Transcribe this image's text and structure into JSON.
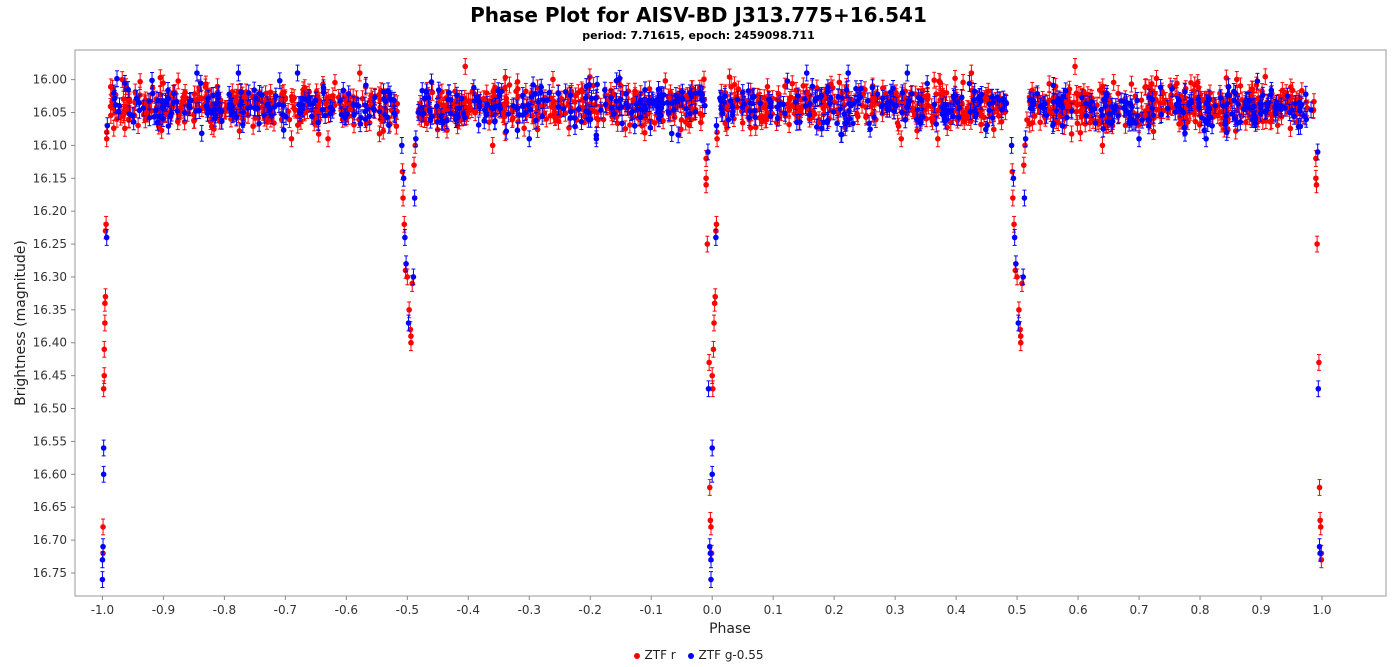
{
  "chart_data": {
    "type": "scatter",
    "title": "Phase Plot for AISV-BD J313.775+16.541",
    "subtitle": "period: 7.71615, epoch: 2459098.711",
    "xlabel": "Phase",
    "ylabel": "Brightness (magnitude)",
    "xlim": [
      -1.045,
      1.105
    ],
    "ylim": [
      16.785,
      15.955
    ],
    "y_inverted": true,
    "x_ticks": [
      "-1.0",
      "-0.9",
      "-0.8",
      "-0.7",
      "-0.6",
      "-0.5",
      "-0.4",
      "-0.3",
      "-0.2",
      "-0.1",
      "0.0",
      "0.1",
      "0.2",
      "0.3",
      "0.4",
      "0.5",
      "0.6",
      "0.7",
      "0.8",
      "0.9",
      "1.0"
    ],
    "y_ticks": [
      "16.00",
      "16.05",
      "16.10",
      "16.15",
      "16.20",
      "16.25",
      "16.30",
      "16.35",
      "16.40",
      "16.45",
      "16.50",
      "16.55",
      "16.60",
      "16.65",
      "16.70",
      "16.75"
    ],
    "grid": false,
    "legend_position": "bottom-center",
    "baseline_magnitude": 16.04,
    "error_bar_magnitude": 0.012,
    "primary_eclipse_phases": [
      -1.0,
      0.0,
      1.0
    ],
    "secondary_eclipse_phases": [
      -0.5,
      0.5
    ],
    "series": [
      {
        "name": "ZTF r",
        "color": "#ff0000",
        "eclipse_points": [
          {
            "x": -0.993,
            "y": 16.09
          },
          {
            "x": -0.993,
            "y": 16.08
          },
          {
            "x": -0.994,
            "y": 16.22
          },
          {
            "x": -0.995,
            "y": 16.23
          },
          {
            "x": -0.995,
            "y": 16.33
          },
          {
            "x": -0.996,
            "y": 16.34
          },
          {
            "x": -0.996,
            "y": 16.37
          },
          {
            "x": -0.997,
            "y": 16.41
          },
          {
            "x": -0.997,
            "y": 16.45
          },
          {
            "x": -0.998,
            "y": 16.47
          },
          {
            "x": -0.999,
            "y": 16.68
          },
          {
            "x": -0.999,
            "y": 16.72
          },
          {
            "x": -0.508,
            "y": 16.14
          },
          {
            "x": -0.507,
            "y": 16.18
          },
          {
            "x": -0.505,
            "y": 16.22
          },
          {
            "x": -0.503,
            "y": 16.29
          },
          {
            "x": -0.5,
            "y": 16.3
          },
          {
            "x": -0.497,
            "y": 16.35
          },
          {
            "x": -0.495,
            "y": 16.38
          },
          {
            "x": -0.494,
            "y": 16.39
          },
          {
            "x": -0.494,
            "y": 16.4
          },
          {
            "x": -0.492,
            "y": 16.31
          },
          {
            "x": -0.489,
            "y": 16.13
          },
          {
            "x": -0.487,
            "y": 16.1
          },
          {
            "x": -0.01,
            "y": 16.12
          },
          {
            "x": -0.01,
            "y": 16.15
          },
          {
            "x": -0.01,
            "y": 16.16
          },
          {
            "x": -0.008,
            "y": 16.25
          },
          {
            "x": -0.005,
            "y": 16.43
          },
          {
            "x": -0.004,
            "y": 16.62
          },
          {
            "x": -0.003,
            "y": 16.67
          },
          {
            "x": -0.002,
            "y": 16.68
          },
          {
            "x": -0.001,
            "y": 16.72
          },
          {
            "x": 0.0,
            "y": 16.45
          },
          {
            "x": 0.001,
            "y": 16.47
          },
          {
            "x": 0.002,
            "y": 16.41
          },
          {
            "x": 0.003,
            "y": 16.37
          },
          {
            "x": 0.004,
            "y": 16.34
          },
          {
            "x": 0.005,
            "y": 16.33
          },
          {
            "x": 0.006,
            "y": 16.23
          },
          {
            "x": 0.007,
            "y": 16.22
          },
          {
            "x": 0.008,
            "y": 16.09
          },
          {
            "x": 0.008,
            "y": 16.08
          },
          {
            "x": 0.492,
            "y": 16.14
          },
          {
            "x": 0.493,
            "y": 16.18
          },
          {
            "x": 0.495,
            "y": 16.22
          },
          {
            "x": 0.497,
            "y": 16.29
          },
          {
            "x": 0.5,
            "y": 16.3
          },
          {
            "x": 0.503,
            "y": 16.35
          },
          {
            "x": 0.505,
            "y": 16.38
          },
          {
            "x": 0.506,
            "y": 16.39
          },
          {
            "x": 0.506,
            "y": 16.4
          },
          {
            "x": 0.508,
            "y": 16.31
          },
          {
            "x": 0.511,
            "y": 16.13
          },
          {
            "x": 0.513,
            "y": 16.1
          },
          {
            "x": 0.99,
            "y": 16.12
          },
          {
            "x": 0.99,
            "y": 16.15
          },
          {
            "x": 0.991,
            "y": 16.16
          },
          {
            "x": 0.992,
            "y": 16.25
          },
          {
            "x": 0.995,
            "y": 16.43
          },
          {
            "x": 0.996,
            "y": 16.62
          },
          {
            "x": 0.997,
            "y": 16.67
          },
          {
            "x": 0.998,
            "y": 16.68
          },
          {
            "x": 0.999,
            "y": 16.72
          },
          {
            "x": 0.999,
            "y": 16.73
          }
        ],
        "out_of_eclipse_outliers": [
          {
            "x": -0.578,
            "y": 15.99
          },
          {
            "x": -0.405,
            "y": 15.98
          },
          {
            "x": -0.69,
            "y": 16.09
          },
          {
            "x": -0.36,
            "y": 16.1
          },
          {
            "x": 0.595,
            "y": 15.98
          },
          {
            "x": 0.425,
            "y": 15.99
          },
          {
            "x": 0.31,
            "y": 16.09
          },
          {
            "x": 0.64,
            "y": 16.1
          },
          {
            "x": -0.63,
            "y": 16.09
          },
          {
            "x": 0.37,
            "y": 16.09
          }
        ]
      },
      {
        "name": "ZTF g-0.55",
        "color": "#0000ff",
        "eclipse_points": [
          {
            "x": -0.992,
            "y": 16.07
          },
          {
            "x": -0.993,
            "y": 16.24
          },
          {
            "x": -0.998,
            "y": 16.56
          },
          {
            "x": -0.998,
            "y": 16.6
          },
          {
            "x": -0.999,
            "y": 16.71
          },
          {
            "x": -1.0,
            "y": 16.73
          },
          {
            "x": -1.0,
            "y": 16.76
          },
          {
            "x": -0.509,
            "y": 16.1
          },
          {
            "x": -0.506,
            "y": 16.15
          },
          {
            "x": -0.504,
            "y": 16.24
          },
          {
            "x": -0.502,
            "y": 16.28
          },
          {
            "x": -0.498,
            "y": 16.37
          },
          {
            "x": -0.49,
            "y": 16.3
          },
          {
            "x": -0.488,
            "y": 16.18
          },
          {
            "x": -0.486,
            "y": 16.09
          },
          {
            "x": -0.007,
            "y": 16.11
          },
          {
            "x": -0.006,
            "y": 16.47
          },
          {
            "x": -0.004,
            "y": 16.71
          },
          {
            "x": -0.003,
            "y": 16.72
          },
          {
            "x": -0.002,
            "y": 16.73
          },
          {
            "x": -0.002,
            "y": 16.76
          },
          {
            "x": 0.0,
            "y": 16.56
          },
          {
            "x": 0.0,
            "y": 16.6
          },
          {
            "x": 0.006,
            "y": 16.24
          },
          {
            "x": 0.007,
            "y": 16.07
          },
          {
            "x": 0.491,
            "y": 16.1
          },
          {
            "x": 0.494,
            "y": 16.15
          },
          {
            "x": 0.496,
            "y": 16.24
          },
          {
            "x": 0.498,
            "y": 16.28
          },
          {
            "x": 0.502,
            "y": 16.37
          },
          {
            "x": 0.51,
            "y": 16.3
          },
          {
            "x": 0.512,
            "y": 16.18
          },
          {
            "x": 0.514,
            "y": 16.09
          },
          {
            "x": 0.993,
            "y": 16.11
          },
          {
            "x": 0.994,
            "y": 16.47
          },
          {
            "x": 0.996,
            "y": 16.71
          },
          {
            "x": 0.997,
            "y": 16.72
          }
        ],
        "out_of_eclipse_outliers": [
          {
            "x": -0.845,
            "y": 15.99
          },
          {
            "x": -0.777,
            "y": 15.99
          },
          {
            "x": -0.68,
            "y": 15.99
          },
          {
            "x": 0.155,
            "y": 15.99
          },
          {
            "x": 0.223,
            "y": 15.99
          },
          {
            "x": 0.32,
            "y": 15.99
          },
          {
            "x": -0.3,
            "y": 16.09
          },
          {
            "x": 0.7,
            "y": 16.09
          },
          {
            "x": -0.19,
            "y": 16.09
          },
          {
            "x": 0.81,
            "y": 16.09
          }
        ]
      }
    ]
  },
  "legend": {
    "items": [
      {
        "label": "ZTF r",
        "color": "#ff0000"
      },
      {
        "label": "ZTF g-0.55",
        "color": "#0000ff"
      }
    ]
  }
}
